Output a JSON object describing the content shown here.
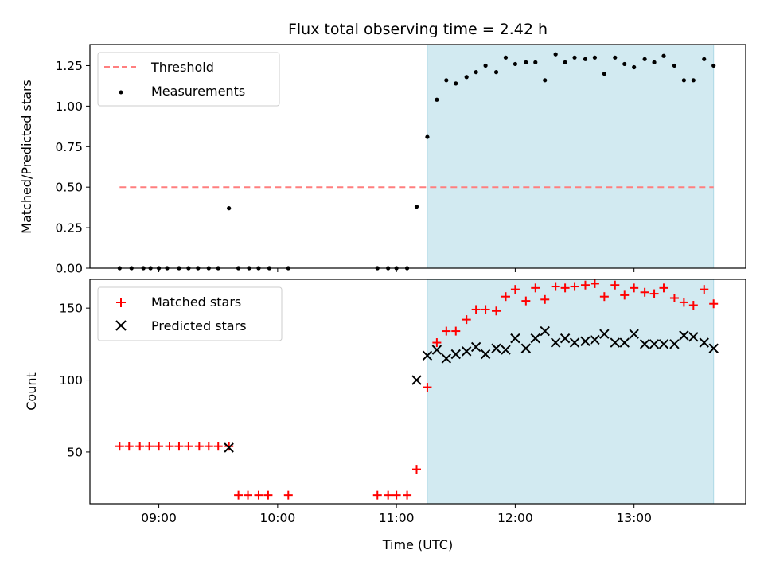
{
  "chart_data": [
    {
      "type": "scatter",
      "title": "Flux total observing time = 2.42 h",
      "ylabel": "Matched/Predicted stars",
      "xlabel": "",
      "x_unit": "hours UTC",
      "xlim": [
        8.42,
        13.94
      ],
      "ylim": [
        0.0,
        1.38
      ],
      "yticks": [
        0.0,
        0.25,
        0.5,
        0.75,
        1.0,
        1.25
      ],
      "ytick_labels": [
        "0.00",
        "0.25",
        "0.50",
        "0.75",
        "1.00",
        "1.25"
      ],
      "xticks": [
        9,
        10,
        11,
        12,
        13
      ],
      "shaded_interval": [
        11.26,
        13.67
      ],
      "shade_color": "#add8e6",
      "legend_position": "upper-left",
      "series": [
        {
          "name": "Threshold",
          "kind": "dashed-line",
          "color": "#ff7f7f",
          "x": [
            8.67,
            13.67
          ],
          "y": [
            0.5,
            0.5
          ]
        },
        {
          "name": "Measurements",
          "kind": "points",
          "color": "#000000",
          "x": [
            8.67,
            8.77,
            8.87,
            8.93,
            9.0,
            9.07,
            9.17,
            9.25,
            9.33,
            9.42,
            9.5,
            9.59,
            9.67,
            9.76,
            9.84,
            9.93,
            10.09,
            10.84,
            10.93,
            11.0,
            11.09,
            11.17,
            11.26,
            11.34,
            11.42,
            11.5,
            11.59,
            11.67,
            11.75,
            11.84,
            11.92,
            12.0,
            12.09,
            12.17,
            12.25,
            12.34,
            12.42,
            12.5,
            12.59,
            12.67,
            12.75,
            12.84,
            12.92,
            13.0,
            13.09,
            13.17,
            13.25,
            13.34,
            13.42,
            13.5,
            13.59,
            13.67
          ],
          "y": [
            0.0,
            0.0,
            0.0,
            0.0,
            0.0,
            0.0,
            0.0,
            0.0,
            0.0,
            0.0,
            0.0,
            0.37,
            0.0,
            0.0,
            0.0,
            0.0,
            0.0,
            0.0,
            0.0,
            0.0,
            0.0,
            0.38,
            0.81,
            1.04,
            1.16,
            1.14,
            1.18,
            1.21,
            1.25,
            1.21,
            1.3,
            1.26,
            1.27,
            1.27,
            1.16,
            1.32,
            1.27,
            1.3,
            1.29,
            1.3,
            1.2,
            1.3,
            1.26,
            1.24,
            1.29,
            1.27,
            1.31,
            1.25,
            1.16,
            1.16,
            1.29,
            1.25
          ]
        }
      ]
    },
    {
      "type": "scatter",
      "title": "",
      "ylabel": "Count",
      "xlabel": "Time (UTC)",
      "x_unit": "hours UTC",
      "xlim": [
        8.42,
        13.94
      ],
      "ylim": [
        14,
        170
      ],
      "yticks": [
        50,
        100,
        150
      ],
      "ytick_labels": [
        "50",
        "100",
        "150"
      ],
      "xticks": [
        9,
        10,
        11,
        12,
        13
      ],
      "xtick_labels": [
        "09:00",
        "10:00",
        "11:00",
        "12:00",
        "13:00"
      ],
      "shaded_interval": [
        11.26,
        13.67
      ],
      "shade_color": "#add8e6",
      "legend_position": "upper-left",
      "series": [
        {
          "name": "Matched stars",
          "kind": "plus",
          "color": "#ff0000",
          "x": [
            8.67,
            8.75,
            8.84,
            8.92,
            9.0,
            9.09,
            9.17,
            9.25,
            9.34,
            9.42,
            9.5,
            9.59,
            9.67,
            9.75,
            9.84,
            9.92,
            10.09,
            10.84,
            10.93,
            11.0,
            11.09,
            11.17,
            11.26,
            11.34,
            11.42,
            11.5,
            11.59,
            11.67,
            11.75,
            11.84,
            11.92,
            12.0,
            12.09,
            12.17,
            12.25,
            12.34,
            12.42,
            12.5,
            12.59,
            12.67,
            12.75,
            12.84,
            12.92,
            13.0,
            13.09,
            13.17,
            13.25,
            13.34,
            13.42,
            13.5,
            13.59,
            13.67
          ],
          "y": [
            54,
            54,
            54,
            54,
            54,
            54,
            54,
            54,
            54,
            54,
            54,
            54,
            20,
            20,
            20,
            20,
            20,
            20,
            20,
            20,
            20,
            38,
            95,
            126,
            134,
            134,
            142,
            149,
            149,
            148,
            158,
            163,
            155,
            164,
            156,
            165,
            164,
            165,
            166,
            167,
            158,
            166,
            159,
            164,
            161,
            160,
            164,
            157,
            154,
            152,
            163,
            153
          ]
        },
        {
          "name": "Predicted stars",
          "kind": "x",
          "color": "#000000",
          "x": [
            9.59,
            11.17,
            11.26,
            11.34,
            11.42,
            11.5,
            11.59,
            11.67,
            11.75,
            11.84,
            11.92,
            12.0,
            12.09,
            12.17,
            12.25,
            12.34,
            12.42,
            12.5,
            12.59,
            12.67,
            12.75,
            12.84,
            12.92,
            13.0,
            13.09,
            13.17,
            13.25,
            13.34,
            13.42,
            13.5,
            13.59,
            13.67
          ],
          "y": [
            53,
            100,
            117,
            121,
            115,
            118,
            120,
            123,
            118,
            122,
            121,
            129,
            122,
            129,
            134,
            126,
            129,
            126,
            127,
            128,
            132,
            126,
            126,
            132,
            125,
            125,
            125,
            125,
            131,
            130,
            126,
            122
          ]
        }
      ]
    }
  ]
}
